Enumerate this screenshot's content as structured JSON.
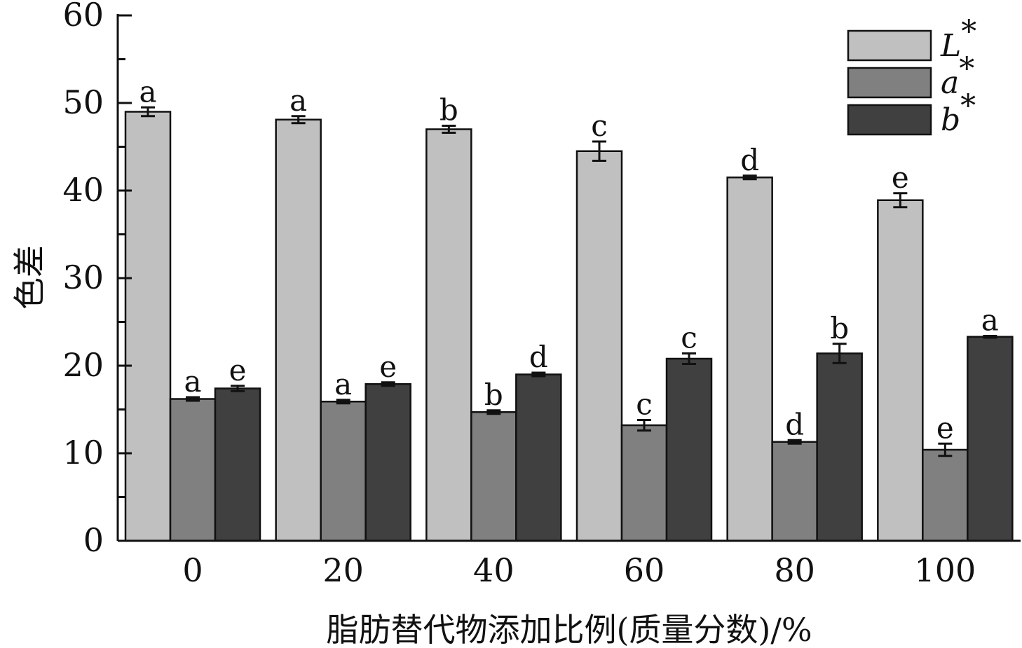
{
  "chart_data": {
    "type": "bar",
    "categories": [
      "0",
      "20",
      "40",
      "60",
      "80",
      "100"
    ],
    "xlabel": "脂肪替代物添加比例(质量分数)/%",
    "ylabel": "色差",
    "ylim": [
      0,
      60
    ],
    "yticks": [
      "0",
      "10",
      "20",
      "30",
      "40",
      "50",
      "60"
    ],
    "grid": false,
    "legend_position": "top-right",
    "series": [
      {
        "name": "L*",
        "legend_main": "L",
        "legend_sup": "*",
        "color": "#c0c0c0",
        "values": [
          49.0,
          48.1,
          47.0,
          44.5,
          41.5,
          38.9
        ],
        "errors": [
          0.5,
          0.4,
          0.4,
          1.1,
          0.2,
          0.8
        ],
        "labels": [
          "a",
          "a",
          "b",
          "c",
          "d",
          "e"
        ]
      },
      {
        "name": "a*",
        "legend_main": "a",
        "legend_sup": "*",
        "color": "#808080",
        "values": [
          16.2,
          15.9,
          14.7,
          13.2,
          11.3,
          10.4
        ],
        "errors": [
          0.2,
          0.2,
          0.2,
          0.6,
          0.2,
          0.7
        ],
        "labels": [
          "a",
          "a",
          "b",
          "c",
          "d",
          "e"
        ]
      },
      {
        "name": "b*",
        "legend_main": "b",
        "legend_sup": "*",
        "color": "#404040",
        "values": [
          17.4,
          17.9,
          19.0,
          20.8,
          21.4,
          23.3
        ],
        "errors": [
          0.3,
          0.2,
          0.2,
          0.6,
          1.1,
          0.1
        ],
        "labels": [
          "e",
          "e",
          "d",
          "c",
          "b",
          "a"
        ]
      }
    ]
  }
}
